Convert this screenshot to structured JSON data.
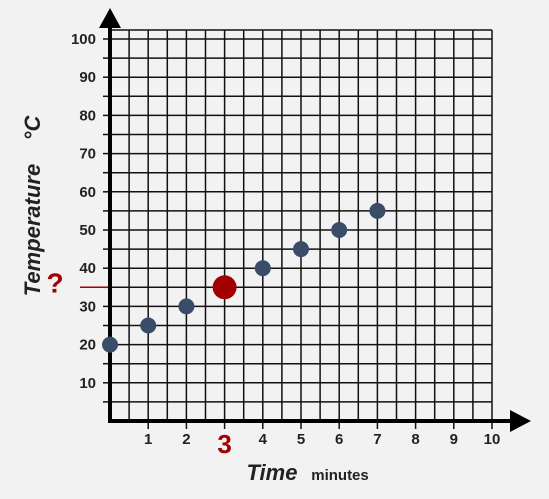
{
  "chart_data": {
    "type": "scatter",
    "x": [
      0,
      1,
      2,
      3,
      4,
      5,
      6,
      7
    ],
    "values": [
      20,
      25,
      30,
      35,
      40,
      45,
      50,
      55
    ],
    "marker_colors": [
      "#3a4d68",
      "#3a4d68",
      "#3a4d68",
      "#a30000",
      "#3a4d68",
      "#3a4d68",
      "#3a4d68",
      "#3a4d68"
    ],
    "color": "#3a4d68",
    "annotation": "?",
    "xlim": [
      0,
      10
    ],
    "ylim": [
      0,
      100
    ],
    "xticks": [
      1,
      2,
      3,
      4,
      5,
      6,
      7,
      8,
      9,
      10
    ],
    "yticks": [
      10,
      20,
      30,
      40,
      50,
      60,
      70,
      80,
      90,
      100
    ],
    "x_label": "Time",
    "x_label_unit": "minutes",
    "y_label": "Temperature",
    "y_label_unit": "°C",
    "grid": true
  }
}
